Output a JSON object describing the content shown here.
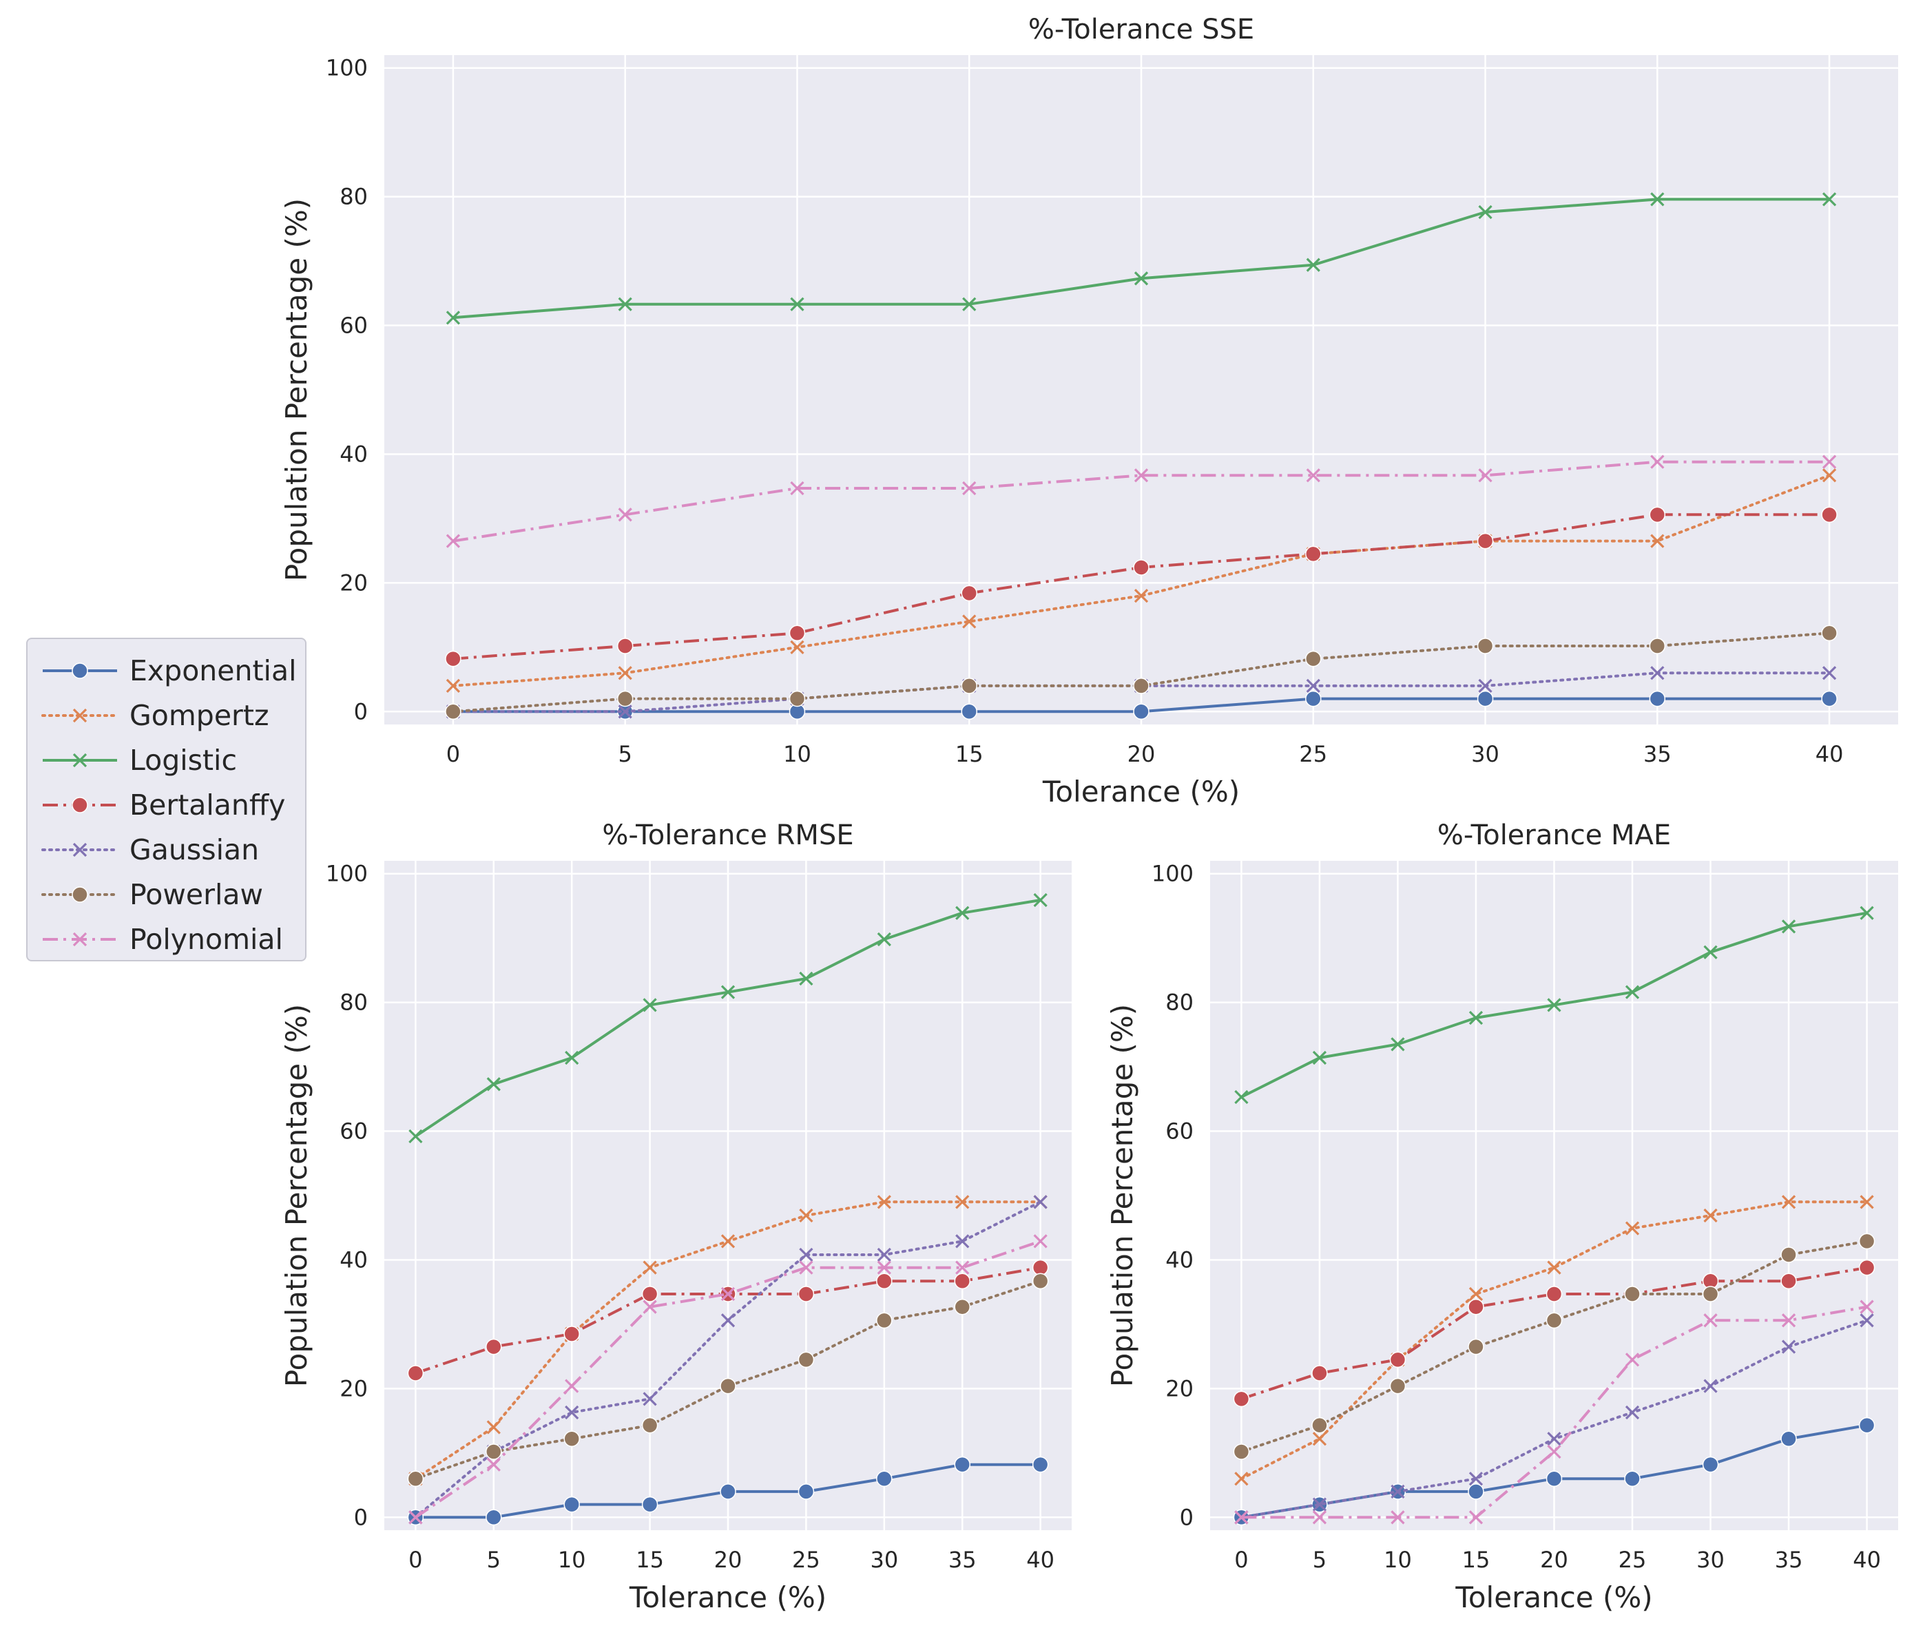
{
  "colors": {
    "panel_bg": "#eaeaf2",
    "grid": "#ffffff",
    "text": "#262626"
  },
  "legend": [
    {
      "name": "Exponential",
      "color": "#4c72b0",
      "dash": "solid",
      "marker": "circle"
    },
    {
      "name": "Gompertz",
      "color": "#dd8452",
      "dash": "dotted",
      "marker": "x"
    },
    {
      "name": "Logistic",
      "color": "#55a868",
      "dash": "solid",
      "marker": "x"
    },
    {
      "name": "Bertalanffy",
      "color": "#c44e52",
      "dash": "dashdot",
      "marker": "circle"
    },
    {
      "name": "Gaussian",
      "color": "#8172b3",
      "dash": "dotted",
      "marker": "x"
    },
    {
      "name": "Powerlaw",
      "color": "#937860",
      "dash": "dotted",
      "marker": "circle"
    },
    {
      "name": "Polynomial",
      "color": "#da8bc3",
      "dash": "dashdot",
      "marker": "x"
    }
  ],
  "chart_data": [
    {
      "id": "sse",
      "type": "line",
      "title": "%-Tolerance SSE",
      "xlabel": "Tolerance (%)",
      "ylabel": "Population Percentage (%)",
      "x": [
        0,
        5,
        10,
        15,
        20,
        25,
        30,
        35,
        40
      ],
      "xticks": [
        "0",
        "5",
        "10",
        "15",
        "20",
        "25",
        "30",
        "35",
        "40"
      ],
      "yticks": [
        "0",
        "20",
        "40",
        "60",
        "80",
        "100"
      ],
      "ylim": [
        -2,
        102
      ],
      "xlim": [
        -2,
        42
      ],
      "grid": true,
      "series": [
        {
          "name": "Exponential",
          "values": [
            0,
            0,
            0,
            0,
            0,
            2,
            2,
            2,
            2
          ]
        },
        {
          "name": "Gompertz",
          "values": [
            4,
            6,
            10,
            14,
            18,
            24.5,
            26.5,
            26.5,
            36.7
          ]
        },
        {
          "name": "Logistic",
          "values": [
            61.2,
            63.3,
            63.3,
            63.3,
            67.3,
            69.4,
            77.6,
            79.6,
            79.6
          ]
        },
        {
          "name": "Bertalanffy",
          "values": [
            8.2,
            10.2,
            12.2,
            18.4,
            22.4,
            24.5,
            26.5,
            30.6,
            30.6
          ]
        },
        {
          "name": "Gaussian",
          "values": [
            0,
            0,
            2,
            4,
            4,
            4,
            4,
            6,
            6
          ]
        },
        {
          "name": "Powerlaw",
          "values": [
            0,
            2,
            2,
            4,
            4,
            8.2,
            10.2,
            10.2,
            12.2
          ]
        },
        {
          "name": "Polynomial",
          "values": [
            26.5,
            30.6,
            34.7,
            34.7,
            36.7,
            36.7,
            36.7,
            38.8,
            38.8
          ]
        }
      ]
    },
    {
      "id": "rmse",
      "type": "line",
      "title": "%-Tolerance RMSE",
      "xlabel": "Tolerance (%)",
      "ylabel": "Population Percentage (%)",
      "x": [
        0,
        5,
        10,
        15,
        20,
        25,
        30,
        35,
        40
      ],
      "xticks": [
        "0",
        "5",
        "10",
        "15",
        "20",
        "25",
        "30",
        "35",
        "40"
      ],
      "yticks": [
        "0",
        "20",
        "40",
        "60",
        "80",
        "100"
      ],
      "ylim": [
        -2,
        102
      ],
      "xlim": [
        -2,
        42
      ],
      "grid": true,
      "series": [
        {
          "name": "Exponential",
          "values": [
            0,
            0,
            2,
            2,
            4,
            4,
            6,
            8.2,
            8.2
          ]
        },
        {
          "name": "Gompertz",
          "values": [
            6,
            14,
            28.5,
            38.8,
            42.9,
            46.9,
            49,
            49,
            49
          ]
        },
        {
          "name": "Logistic",
          "values": [
            59.2,
            67.3,
            71.4,
            79.6,
            81.6,
            83.7,
            89.8,
            93.9,
            95.9
          ]
        },
        {
          "name": "Bertalanffy",
          "values": [
            22.4,
            26.5,
            28.5,
            34.7,
            34.7,
            34.7,
            36.7,
            36.7,
            38.8
          ]
        },
        {
          "name": "Gaussian",
          "values": [
            0,
            10.2,
            16.3,
            18.4,
            30.6,
            40.8,
            40.8,
            42.9,
            49
          ]
        },
        {
          "name": "Powerlaw",
          "values": [
            6,
            10.2,
            12.2,
            14.3,
            20.4,
            24.5,
            30.6,
            32.7,
            36.7
          ]
        },
        {
          "name": "Polynomial",
          "values": [
            0,
            8.2,
            20.4,
            32.7,
            34.7,
            38.8,
            38.8,
            38.8,
            42.9
          ]
        }
      ]
    },
    {
      "id": "mae",
      "type": "line",
      "title": "%-Tolerance MAE",
      "xlabel": "Tolerance (%)",
      "ylabel": "Population Percentage (%)",
      "x": [
        0,
        5,
        10,
        15,
        20,
        25,
        30,
        35,
        40
      ],
      "xticks": [
        "0",
        "5",
        "10",
        "15",
        "20",
        "25",
        "30",
        "35",
        "40"
      ],
      "yticks": [
        "0",
        "20",
        "40",
        "60",
        "80",
        "100"
      ],
      "ylim": [
        -2,
        102
      ],
      "xlim": [
        -2,
        42
      ],
      "grid": true,
      "series": [
        {
          "name": "Exponential",
          "values": [
            0,
            2,
            4,
            4,
            6,
            6,
            8.2,
            12.2,
            14.3
          ]
        },
        {
          "name": "Gompertz",
          "values": [
            6,
            12.2,
            24.5,
            34.7,
            38.8,
            44.9,
            46.9,
            49,
            49
          ]
        },
        {
          "name": "Logistic",
          "values": [
            65.3,
            71.4,
            73.5,
            77.6,
            79.6,
            81.6,
            87.8,
            91.8,
            93.9
          ]
        },
        {
          "name": "Bertalanffy",
          "values": [
            18.4,
            22.4,
            24.5,
            32.7,
            34.7,
            34.7,
            36.7,
            36.7,
            38.8
          ]
        },
        {
          "name": "Gaussian",
          "values": [
            0,
            2,
            4,
            6,
            12.2,
            16.3,
            20.4,
            26.5,
            30.6
          ]
        },
        {
          "name": "Powerlaw",
          "values": [
            10.2,
            14.3,
            20.4,
            26.5,
            30.6,
            34.7,
            34.7,
            40.8,
            42.9
          ]
        },
        {
          "name": "Polynomial",
          "values": [
            0,
            0,
            0,
            0,
            10.2,
            24.5,
            30.6,
            30.6,
            32.7
          ]
        }
      ]
    }
  ]
}
